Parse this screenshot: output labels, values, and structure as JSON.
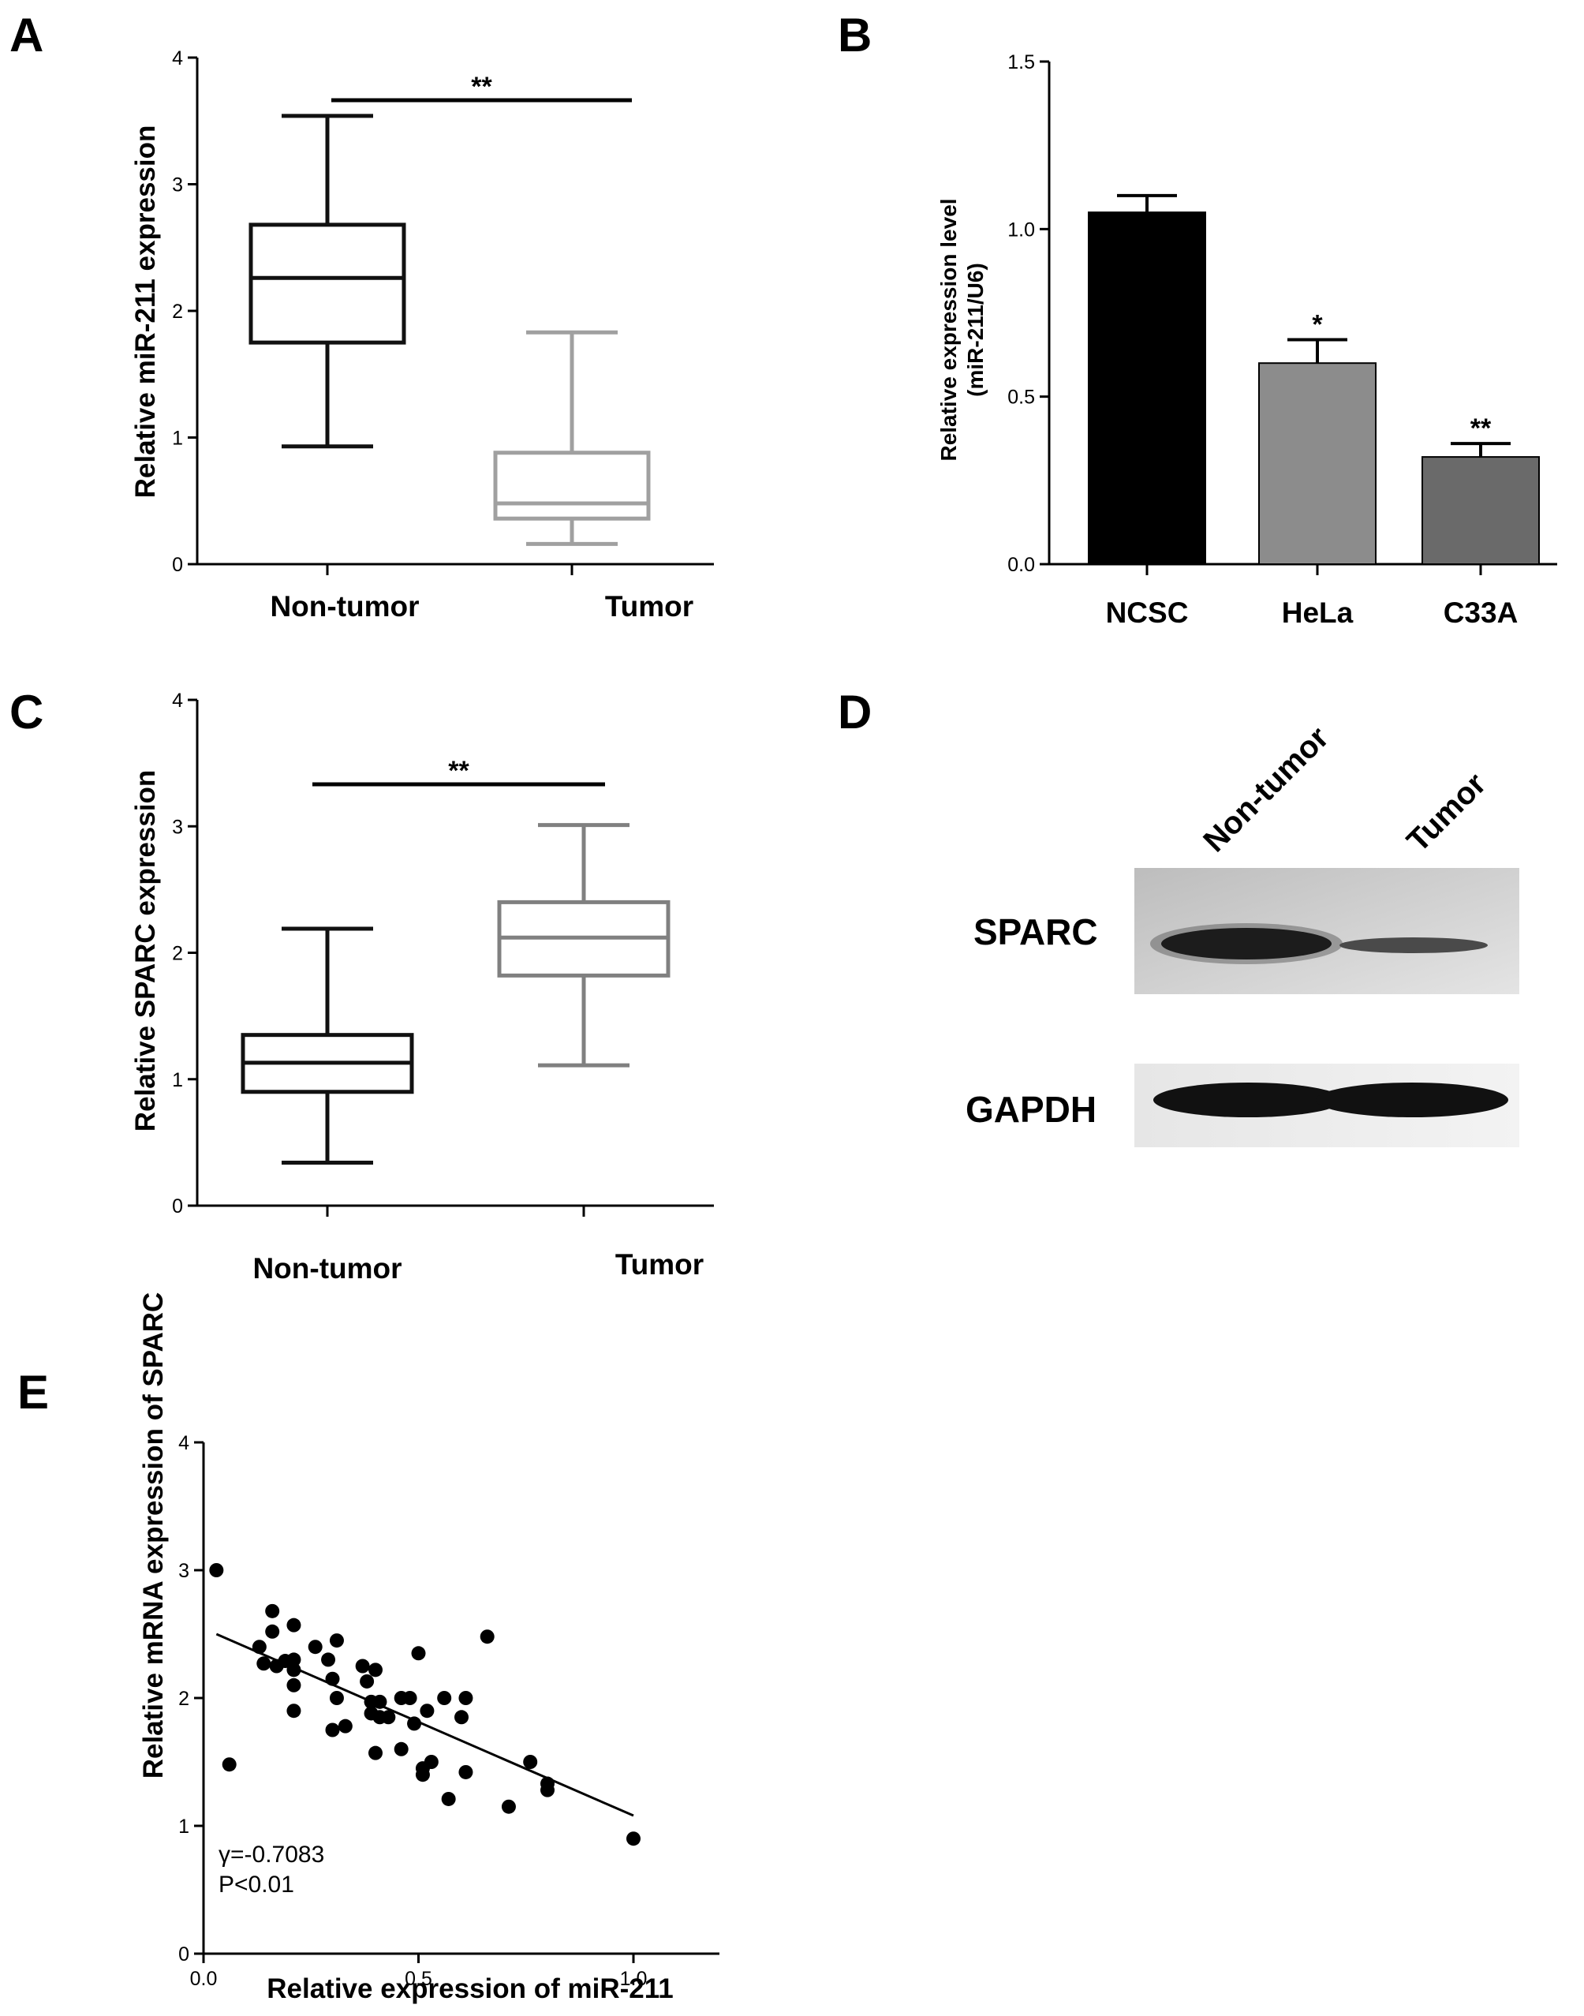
{
  "panels": {
    "a": "A",
    "b": "B",
    "c": "C",
    "d": "D",
    "e": "E"
  },
  "chart_data": [
    {
      "id": "A",
      "type": "box",
      "ylabel": "Relative miR-211 expression",
      "ylim": [
        0,
        4
      ],
      "yticks": [
        "0",
        "1",
        "2",
        "3",
        "4"
      ],
      "categories": [
        "Non-tumor",
        "Tumor"
      ],
      "series": [
        {
          "category": "Non-tumor",
          "min": 0.93,
          "q1": 1.75,
          "median": 2.26,
          "q3": 2.68,
          "max": 3.54,
          "color": "#111111"
        },
        {
          "category": "Tumor",
          "min": 0.16,
          "q1": 0.36,
          "median": 0.48,
          "q3": 0.88,
          "max": 1.83,
          "color": "#a0a0a0"
        }
      ],
      "significance": "**"
    },
    {
      "id": "B",
      "type": "bar",
      "ylabel": "Relative expression level",
      "ylabel2": "(miR-211/U6)",
      "ylim": [
        0,
        1.5
      ],
      "yticks": [
        "0.0",
        "0.5",
        "1.0",
        "1.5"
      ],
      "categories": [
        "NCSC",
        "HeLa",
        "C33A"
      ],
      "values": [
        1.05,
        0.6,
        0.32
      ],
      "errors": [
        0.05,
        0.07,
        0.04
      ],
      "significance": [
        "",
        "*",
        "**"
      ],
      "colors": [
        "#000000",
        "#8c8c8c",
        "#6a6a6a"
      ]
    },
    {
      "id": "C",
      "type": "box",
      "ylabel": "Relative SPARC expression",
      "ylim": [
        0,
        4
      ],
      "yticks": [
        "0",
        "1",
        "2",
        "3",
        "4"
      ],
      "categories": [
        "Non-tumor",
        "Tumor"
      ],
      "series": [
        {
          "category": "Non-tumor",
          "min": 0.34,
          "q1": 0.9,
          "median": 1.13,
          "q3": 1.35,
          "max": 2.19,
          "color": "#111111"
        },
        {
          "category": "Tumor",
          "min": 1.11,
          "q1": 1.82,
          "median": 2.12,
          "q3": 2.4,
          "max": 3.01,
          "color": "#808080"
        }
      ],
      "significance": "**"
    },
    {
      "id": "E",
      "type": "scatter",
      "xlabel": "Relative expression of miR-211",
      "ylabel": "Relative mRNA expression of SPARC",
      "xlim": [
        0,
        1.2
      ],
      "ylim": [
        0,
        4
      ],
      "xticks": [
        "0.0",
        "0.5",
        "1.0"
      ],
      "yticks": [
        "0",
        "1",
        "2",
        "3",
        "4"
      ],
      "annotation_r": "γ=-0.7083",
      "annotation_p": "P<0.01",
      "fit": {
        "x": [
          0.03,
          1.0
        ],
        "y": [
          2.5,
          1.08
        ]
      },
      "points": [
        [
          0.03,
          3.0
        ],
        [
          0.06,
          1.48
        ],
        [
          0.13,
          2.4
        ],
        [
          0.14,
          2.27
        ],
        [
          0.16,
          2.68
        ],
        [
          0.16,
          2.52
        ],
        [
          0.17,
          2.25
        ],
        [
          0.19,
          2.29
        ],
        [
          0.21,
          2.57
        ],
        [
          0.21,
          2.3
        ],
        [
          0.21,
          2.22
        ],
        [
          0.21,
          2.1
        ],
        [
          0.21,
          1.9
        ],
        [
          0.26,
          2.4
        ],
        [
          0.29,
          2.3
        ],
        [
          0.3,
          2.15
        ],
        [
          0.31,
          2.45
        ],
        [
          0.31,
          2.0
        ],
        [
          0.3,
          1.75
        ],
        [
          0.33,
          1.78
        ],
        [
          0.37,
          2.25
        ],
        [
          0.38,
          2.13
        ],
        [
          0.39,
          1.97
        ],
        [
          0.39,
          1.88
        ],
        [
          0.4,
          2.22
        ],
        [
          0.41,
          1.97
        ],
        [
          0.4,
          1.57
        ],
        [
          0.41,
          1.85
        ],
        [
          0.43,
          1.85
        ],
        [
          0.46,
          2.0
        ],
        [
          0.46,
          1.6
        ],
        [
          0.48,
          2.0
        ],
        [
          0.49,
          1.8
        ],
        [
          0.5,
          2.35
        ],
        [
          0.51,
          1.45
        ],
        [
          0.52,
          1.9
        ],
        [
          0.51,
          1.4
        ],
        [
          0.53,
          1.5
        ],
        [
          0.56,
          2.0
        ],
        [
          0.57,
          1.21
        ],
        [
          0.6,
          1.85
        ],
        [
          0.61,
          2.0
        ],
        [
          0.61,
          1.42
        ],
        [
          0.66,
          2.48
        ],
        [
          0.71,
          1.15
        ],
        [
          0.76,
          1.5
        ],
        [
          0.8,
          1.33
        ],
        [
          0.8,
          1.28
        ],
        [
          1.0,
          0.9
        ]
      ]
    }
  ],
  "blot": {
    "lanes": [
      "Non-tumor",
      "Tumor"
    ],
    "proteins": [
      "SPARC",
      "GAPDH"
    ]
  }
}
